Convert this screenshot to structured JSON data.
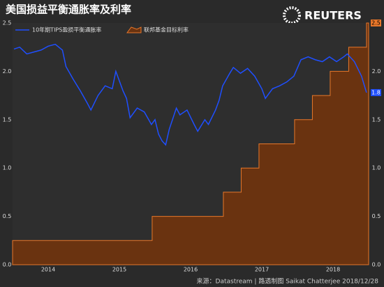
{
  "chart_data": {
    "type": "line",
    "title": "美国损益平衡通胀率及利率",
    "brand": "REUTERS",
    "source": "来源：Datastream | 路透制图 Saikat Chatterjee 2018/12/28",
    "xlim": [
      2014.0,
      2019.0
    ],
    "xticks": [
      {
        "value": 2014.5,
        "label": "2014"
      },
      {
        "value": 2015.5,
        "label": "2015"
      },
      {
        "value": 2016.5,
        "label": "2016"
      },
      {
        "value": 2017.5,
        "label": "2017"
      },
      {
        "value": 2018.5,
        "label": "2018"
      }
    ],
    "ylim": [
      0,
      2.5
    ],
    "yticks": [
      {
        "value": 0,
        "label": "0.0"
      },
      0.5,
      {
        "value": 1,
        "label": "1.0"
      },
      1.5,
      {
        "value": 2,
        "label": "2.0"
      },
      2.5
    ],
    "y2lim": [
      0,
      2.5
    ],
    "y2ticks": [
      {
        "value": 0,
        "label": "0.0"
      },
      0.5,
      {
        "value": 1,
        "label": "1.0"
      },
      1.5,
      {
        "value": 2,
        "label": "2.0"
      }
    ],
    "series": [
      {
        "name": "10年期TIPS盈损平衡通胀率",
        "color": "#1f4fff",
        "style": "line",
        "x": [
          2014.02,
          2014.1,
          2014.2,
          2014.3,
          2014.4,
          2014.5,
          2014.6,
          2014.7,
          2014.75,
          2014.85,
          2014.95,
          2015.05,
          2015.1,
          2015.2,
          2015.3,
          2015.4,
          2015.45,
          2015.5,
          2015.55,
          2015.6,
          2015.65,
          2015.75,
          2015.85,
          2015.95,
          2016.0,
          2016.05,
          2016.1,
          2016.15,
          2016.2,
          2016.3,
          2016.35,
          2016.45,
          2016.55,
          2016.6,
          2016.7,
          2016.75,
          2016.85,
          2016.9,
          2016.95,
          2017.05,
          2017.1,
          2017.2,
          2017.3,
          2017.4,
          2017.5,
          2017.55,
          2017.65,
          2017.75,
          2017.85,
          2017.95,
          2018.05,
          2018.15,
          2018.25,
          2018.35,
          2018.45,
          2018.55,
          2018.65,
          2018.7,
          2018.8,
          2018.9,
          2018.97
        ],
        "values": [
          2.23,
          2.25,
          2.18,
          2.2,
          2.22,
          2.26,
          2.28,
          2.22,
          2.05,
          1.92,
          1.8,
          1.67,
          1.6,
          1.75,
          1.85,
          1.82,
          2.0,
          1.9,
          1.8,
          1.72,
          1.52,
          1.62,
          1.58,
          1.45,
          1.5,
          1.35,
          1.28,
          1.24,
          1.4,
          1.62,
          1.55,
          1.6,
          1.45,
          1.38,
          1.5,
          1.45,
          1.6,
          1.7,
          1.85,
          1.98,
          2.04,
          1.98,
          2.03,
          1.95,
          1.82,
          1.72,
          1.82,
          1.85,
          1.89,
          1.95,
          2.12,
          2.15,
          2.12,
          2.1,
          2.15,
          2.1,
          2.15,
          2.18,
          2.1,
          1.95,
          1.78
        ],
        "value_labels": [
          null,
          null,
          null,
          null,
          null,
          null,
          null,
          null,
          null,
          null,
          null,
          null,
          null,
          null,
          null,
          null,
          null,
          null,
          null,
          null,
          null,
          null,
          null,
          null,
          null,
          null,
          null,
          null,
          null,
          null,
          null,
          null,
          null,
          null,
          null,
          null,
          null,
          null,
          null,
          null,
          null,
          null,
          null,
          null,
          null,
          null,
          null,
          null,
          null,
          null,
          null,
          null,
          null,
          null,
          null,
          null,
          null,
          null,
          null,
          null,
          "1.8"
        ]
      },
      {
        "name": "联邦基金目标利率",
        "color": "#e8772a",
        "fill": "#6a3310",
        "style": "step-area",
        "axis": "y2",
        "x": [
          2014.0,
          2015.96,
          2016.96,
          2017.21,
          2017.46,
          2017.96,
          2018.21,
          2018.46,
          2018.72,
          2018.97
        ],
        "values": [
          0.25,
          0.5,
          0.75,
          1.0,
          1.25,
          1.5,
          1.75,
          2.0,
          2.25,
          2.5
        ]
      }
    ]
  }
}
